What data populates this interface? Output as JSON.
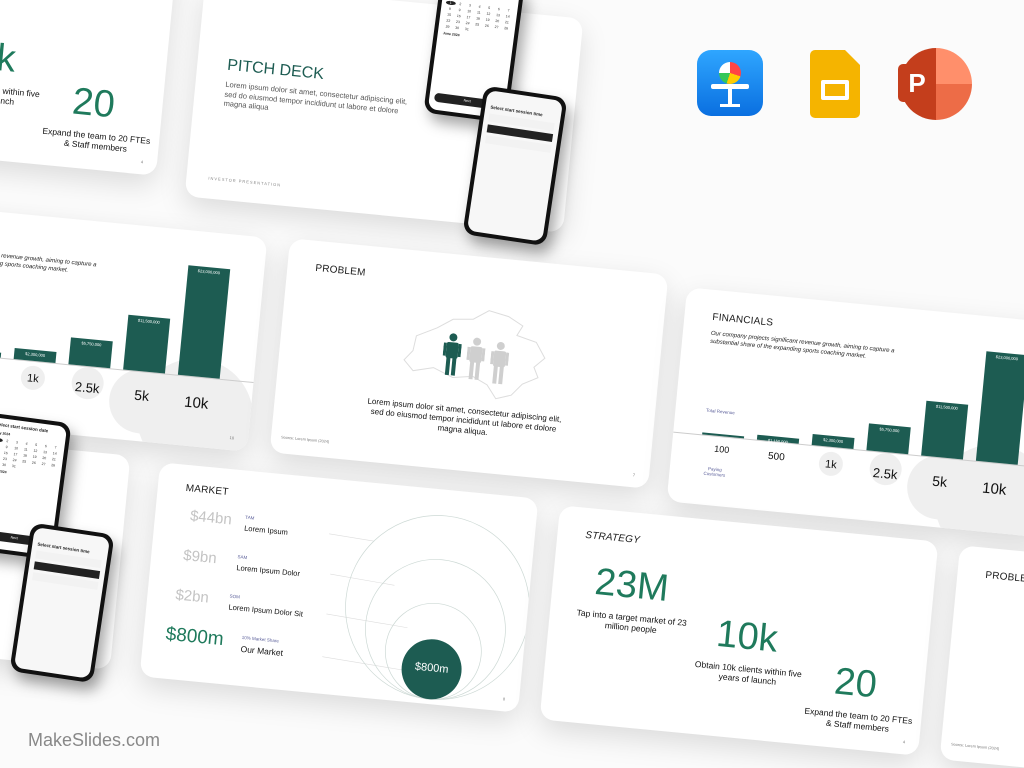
{
  "brand": {
    "watermark": "MakeSlides.com"
  },
  "apps": [
    {
      "name": "Keynote",
      "icon": "keynote-icon",
      "color": "#1a8cf0"
    },
    {
      "name": "Google Slides",
      "icon": "google-slides-icon",
      "color": "#f5b400"
    },
    {
      "name": "PowerPoint",
      "icon": "powerpoint-icon",
      "color": "#d24726"
    }
  ],
  "colors": {
    "accent_dark": "#1d5c52",
    "accent_green": "#1f7a5c",
    "muted_purple": "#5b5f9a"
  },
  "strategy": {
    "title": "STRATEGY",
    "page": "4",
    "stats": [
      {
        "value": "23M",
        "caption": "Tap into a target market of 23 million people"
      },
      {
        "value": "10k",
        "caption": "Obtain 10k clients within five years of launch"
      },
      {
        "value": "20",
        "caption": "Expand the team to 20 FTEs & Staff members"
      }
    ]
  },
  "pitch": {
    "title": "PITCH DECK",
    "description": "Lorem ipsum dolor sit amet, consectetur adipiscing elit, sed do eiusmod tempor incididunt ut labore et dolore magna aliqua",
    "footer": "INVESTOR PRESENTATION",
    "phone1": {
      "heading": "Select start session date",
      "month1": "May 2024",
      "month2": "June 2024",
      "button": "Next",
      "days": [
        "1",
        "2",
        "3",
        "4",
        "5",
        "6",
        "7",
        "8",
        "9",
        "10",
        "11",
        "12",
        "13",
        "14",
        "15",
        "16",
        "17",
        "18",
        "19",
        "20",
        "21",
        "22",
        "23",
        "24",
        "25",
        "26",
        "27",
        "28",
        "29",
        "30",
        "31"
      ],
      "selected_day": "1"
    },
    "phone2": {
      "heading": "Select start session time"
    }
  },
  "financials": {
    "title": "FINANCIALS",
    "description": "Our company projects significant revenue growth, aiming to capture a substantial share of the expanding sports coaching market.",
    "revenue_label": "Total Revenue",
    "customers_label": "Paying Customers",
    "page": "10"
  },
  "chart_data": {
    "type": "bar",
    "xlabel": "Paying Customers",
    "ylabel": "Total Revenue",
    "categories": [
      "100",
      "500",
      "1k",
      "2.5k",
      "5k",
      "10k"
    ],
    "values": [
      230000,
      1150000,
      2300000,
      5750000,
      11500000,
      23000000
    ],
    "data_labels": [
      "",
      "$1,150,000",
      "$2,300,000",
      "$5,750,000",
      "$11,500,000",
      "$23,000,000"
    ]
  },
  "problem": {
    "title": "PROBLEM",
    "text": "Lorem ipsum dolor sit amet, consectetur adipiscing elit, sed do eiusmod tempor incididunt ut labore et dolore magna aliqua.",
    "source": "Source: Lorem Ipsum (2024)",
    "page": "7",
    "people_highlighted": 1,
    "people_total": 3
  },
  "market": {
    "title": "MARKET",
    "page": "8",
    "center_label": "$800m",
    "rows": [
      {
        "value": "$44bn",
        "tag": "TAM",
        "name": "Lorem Ipsum"
      },
      {
        "value": "$9bn",
        "tag": "SAM",
        "name": "Lorem Ipsum Dolor"
      },
      {
        "value": "$2bn",
        "tag": "SOM",
        "name": "Lorem Ipsum Dolor Sit"
      },
      {
        "value": "$800m",
        "tag": "10% Market Share",
        "name": "Our Market"
      }
    ]
  }
}
